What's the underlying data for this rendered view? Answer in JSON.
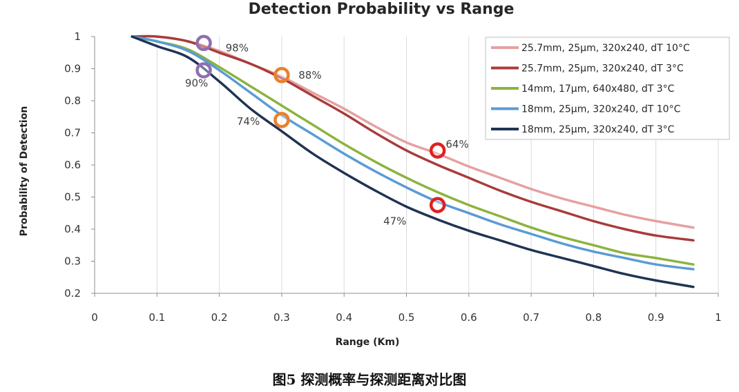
{
  "caption": "图5 探测概率与探测距离对比图",
  "chart_data": {
    "type": "line",
    "title": "Detection Probability vs Range",
    "xlabel": "Range (Km)",
    "ylabel": "Probability of Detection",
    "xlim": [
      0,
      1
    ],
    "ylim": [
      0.2,
      1
    ],
    "xticks": [
      "0",
      "0.1",
      "0.2",
      "0.3",
      "0.4",
      "0.5",
      "0.6",
      "0.7",
      "0.8",
      "0.9",
      "1"
    ],
    "yticks": [
      "0.2",
      "0.3",
      "0.4",
      "0.5",
      "0.6",
      "0.7",
      "0.8",
      "0.9",
      "1"
    ],
    "grid": "vertical",
    "legend_position": "top-right",
    "series": [
      {
        "name": "25.7mm, 25µm, 320x240, dT 10°C",
        "color": "#e6a0a0",
        "x": [
          0.06,
          0.1,
          0.15,
          0.2,
          0.25,
          0.3,
          0.35,
          0.4,
          0.45,
          0.5,
          0.55,
          0.6,
          0.65,
          0.7,
          0.75,
          0.8,
          0.85,
          0.9,
          0.96
        ],
        "y": [
          1.0,
          1.0,
          0.985,
          0.955,
          0.915,
          0.875,
          0.825,
          0.775,
          0.72,
          0.67,
          0.635,
          0.595,
          0.56,
          0.525,
          0.495,
          0.47,
          0.445,
          0.425,
          0.405
        ]
      },
      {
        "name": "25.7mm, 25µm, 320x240, dT 3°C",
        "color": "#a83c3a",
        "x": [
          0.06,
          0.1,
          0.15,
          0.2,
          0.25,
          0.3,
          0.35,
          0.4,
          0.45,
          0.5,
          0.55,
          0.6,
          0.65,
          0.7,
          0.75,
          0.8,
          0.85,
          0.9,
          0.96
        ],
        "y": [
          1.0,
          1.0,
          0.985,
          0.95,
          0.915,
          0.87,
          0.815,
          0.76,
          0.7,
          0.645,
          0.6,
          0.56,
          0.52,
          0.485,
          0.455,
          0.425,
          0.4,
          0.38,
          0.365
        ]
      },
      {
        "name": "14mm, 17µm, 640x480, dT 3°C",
        "color": "#8cb33e",
        "x": [
          0.06,
          0.1,
          0.15,
          0.2,
          0.25,
          0.3,
          0.35,
          0.4,
          0.45,
          0.5,
          0.55,
          0.6,
          0.65,
          0.7,
          0.75,
          0.8,
          0.85,
          0.9,
          0.96
        ],
        "y": [
          1.0,
          0.985,
          0.96,
          0.905,
          0.845,
          0.785,
          0.725,
          0.665,
          0.61,
          0.56,
          0.515,
          0.475,
          0.44,
          0.405,
          0.375,
          0.35,
          0.325,
          0.31,
          0.29
        ]
      },
      {
        "name": "18mm, 25µm, 320x240, dT 10°C",
        "color": "#5b9bd5",
        "x": [
          0.06,
          0.1,
          0.15,
          0.2,
          0.25,
          0.3,
          0.35,
          0.4,
          0.45,
          0.5,
          0.55,
          0.6,
          0.65,
          0.7,
          0.75,
          0.8,
          0.85,
          0.9,
          0.96
        ],
        "y": [
          1.0,
          0.985,
          0.955,
          0.895,
          0.825,
          0.755,
          0.695,
          0.635,
          0.58,
          0.53,
          0.485,
          0.45,
          0.415,
          0.385,
          0.355,
          0.33,
          0.31,
          0.29,
          0.275
        ]
      },
      {
        "name": "18mm, 25µm, 320x240, dT 3°C",
        "color": "#1f3354",
        "x": [
          0.06,
          0.1,
          0.15,
          0.2,
          0.25,
          0.3,
          0.35,
          0.4,
          0.45,
          0.5,
          0.55,
          0.6,
          0.65,
          0.7,
          0.75,
          0.8,
          0.85,
          0.9,
          0.96
        ],
        "y": [
          1.0,
          0.97,
          0.935,
          0.86,
          0.775,
          0.705,
          0.635,
          0.575,
          0.52,
          0.47,
          0.43,
          0.395,
          0.365,
          0.335,
          0.31,
          0.285,
          0.26,
          0.24,
          0.22
        ]
      }
    ],
    "markers": [
      {
        "x": 0.175,
        "y": 0.98,
        "color": "#8f6fb0"
      },
      {
        "x": 0.175,
        "y": 0.895,
        "color": "#8f6fb0"
      },
      {
        "x": 0.3,
        "y": 0.88,
        "color": "#e8802c"
      },
      {
        "x": 0.3,
        "y": 0.74,
        "color": "#e8802c"
      },
      {
        "x": 0.55,
        "y": 0.645,
        "color": "#e02020"
      },
      {
        "x": 0.55,
        "y": 0.475,
        "color": "#e02020"
      }
    ],
    "annotations": [
      {
        "text": "98%",
        "x": 0.21,
        "y": 0.965
      },
      {
        "text": "90%",
        "x": 0.145,
        "y": 0.855
      },
      {
        "text": "88%",
        "x": 0.327,
        "y": 0.88
      },
      {
        "text": "74%",
        "x": 0.228,
        "y": 0.735
      },
      {
        "text": "64%",
        "x": 0.563,
        "y": 0.665
      },
      {
        "text": "47%",
        "x": 0.463,
        "y": 0.425
      }
    ]
  }
}
